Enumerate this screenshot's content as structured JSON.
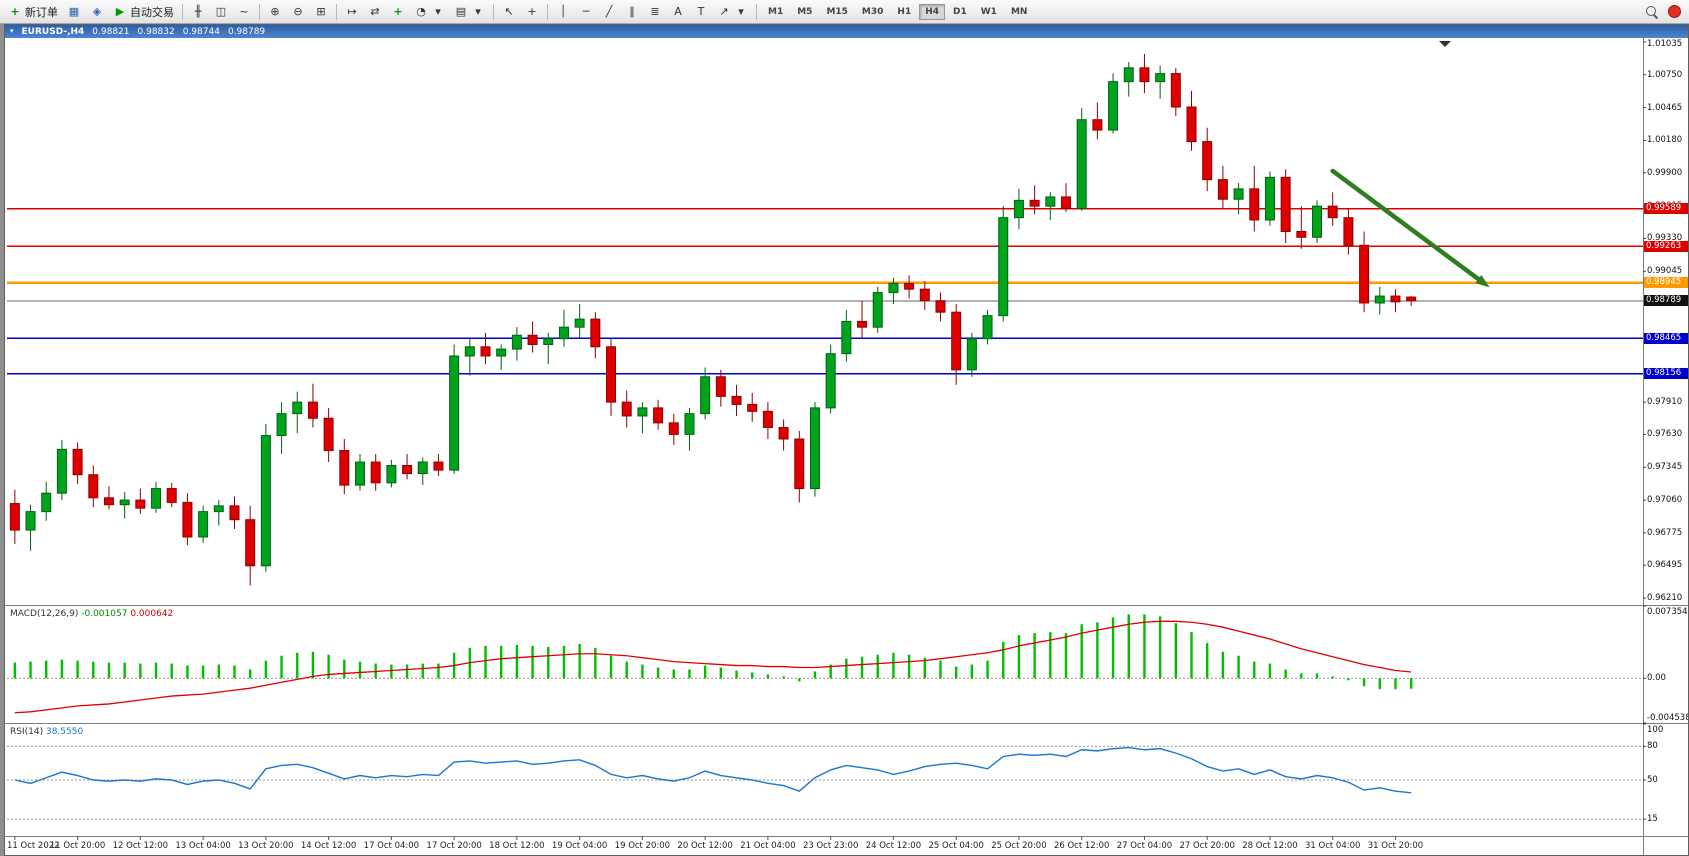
{
  "toolbar": {
    "new_order": "新订单",
    "autotrading": "自动交易",
    "timeframes": [
      "M1",
      "M5",
      "M15",
      "M30",
      "H1",
      "H4",
      "D1",
      "W1",
      "MN"
    ],
    "active_timeframe": "H4",
    "icons": {
      "new_order": "+",
      "charts": "▦",
      "editor": "◈",
      "autotrading": "▶",
      "bars": "╫",
      "candles": "◫",
      "linechart": "~",
      "zoom_in": "⊕",
      "zoom_out": "⊖",
      "tile": "⊞",
      "autoscroll": "↦",
      "shift": "⇄",
      "indicators": "+",
      "periods": "◔",
      "template": "▤",
      "dropdown": "▾",
      "cursor": "↖",
      "crosshair": "+",
      "vline": "│",
      "hline": "─",
      "trendline": "╱",
      "channel": "∥",
      "fibo": "≣",
      "text": "A",
      "label": "T",
      "arrows": "↗",
      "window_menu": "▾"
    }
  },
  "chart_header": {
    "symbol_period": "EURUSD-,H4",
    "open": "0.98821",
    "high": "0.98832",
    "low": "0.98744",
    "close": "0.98789"
  },
  "price_axis": {
    "ticks": [
      {
        "label": "1.01035",
        "value": 1.01035
      },
      {
        "label": "1.00750",
        "value": 1.0075
      },
      {
        "label": "1.00465",
        "value": 1.00465
      },
      {
        "label": "1.00180",
        "value": 1.0018
      },
      {
        "label": "0.99900",
        "value": 0.999
      },
      {
        "label": "0.99615",
        "value": 0.99615
      },
      {
        "label": "0.99330",
        "value": 0.9933
      },
      {
        "label": "0.99045",
        "value": 0.99045
      },
      {
        "label": "0.97910",
        "value": 0.9791
      },
      {
        "label": "0.97630",
        "value": 0.9763
      },
      {
        "label": "0.97345",
        "value": 0.97345
      },
      {
        "label": "0.97060",
        "value": 0.9706
      },
      {
        "label": "0.96775",
        "value": 0.96775
      },
      {
        "label": "0.96495",
        "value": 0.96495
      },
      {
        "label": "0.96210",
        "value": 0.9621
      }
    ],
    "line_labels": [
      {
        "label": "0.99589",
        "value": 0.99589,
        "bg": "#dd0000"
      },
      {
        "label": "0.99263",
        "value": 0.99263,
        "bg": "#dd0000"
      },
      {
        "label": "0.98945",
        "value": 0.98945,
        "bg": "#ff9900"
      },
      {
        "label": "0.98789",
        "value": 0.98789,
        "bg": "#111111"
      },
      {
        "label": "0.98465",
        "value": 0.98465,
        "bg": "#0000cc"
      },
      {
        "label": "0.98156",
        "value": 0.98156,
        "bg": "#0000cc"
      }
    ]
  },
  "time_axis": {
    "labels": [
      "11 Oct 2022",
      "11 Oct 20:00",
      "12 Oct 12:00",
      "13 Oct 04:00",
      "13 Oct 20:00",
      "14 Oct 12:00",
      "17 Oct 04:00",
      "17 Oct 20:00",
      "18 Oct 12:00",
      "19 Oct 04:00",
      "19 Oct 20:00",
      "20 Oct 12:00",
      "21 Oct 04:00",
      "23 Oct 23:00",
      "24 Oct 12:00",
      "25 Oct 04:00",
      "25 Oct 20:00",
      "26 Oct 12:00",
      "27 Oct 04:00",
      "27 Oct 20:00",
      "28 Oct 12:00",
      "31 Oct 04:00",
      "31 Oct 20:00"
    ]
  },
  "macd_panel": {
    "title": "MACD(12,26,9)",
    "value1": "-0.001057",
    "value2": "0.000642",
    "axis_ticks": [
      {
        "label": "0.007354",
        "value": 0.007354
      },
      {
        "label": "0.00",
        "value": 0
      },
      {
        "label": "-0.004538",
        "value": -0.004538
      }
    ]
  },
  "rsi_panel": {
    "title": "RSI(14)",
    "value": "38.5550",
    "axis_ticks": [
      {
        "label": "100",
        "value": 100
      },
      {
        "label": "80",
        "value": 80
      },
      {
        "label": "50",
        "value": 50
      },
      {
        "label": "15",
        "value": 15
      }
    ]
  },
  "chart_data": {
    "type": "candlestick",
    "symbol": "EURUSD-",
    "timeframe": "H4",
    "price_range": [
      0.9615,
      1.0106
    ],
    "colors": {
      "up": "#00a41c",
      "up_edge": "#00610f",
      "down": "#de0000",
      "down_edge": "#8f0000",
      "bid": "#666666",
      "macd_hist": "#00be00",
      "macd_signal": "#e00000",
      "rsi": "#1777d1",
      "arrow": "#2e7d1f"
    },
    "candles_ohlc": [
      [
        0.9703,
        0.9715,
        0.9668,
        0.968
      ],
      [
        0.968,
        0.9702,
        0.9662,
        0.9696
      ],
      [
        0.9696,
        0.9722,
        0.9688,
        0.9712
      ],
      [
        0.9712,
        0.9758,
        0.9706,
        0.975
      ],
      [
        0.975,
        0.9756,
        0.972,
        0.9728
      ],
      [
        0.9728,
        0.9736,
        0.97,
        0.9708
      ],
      [
        0.9708,
        0.9718,
        0.9698,
        0.9702
      ],
      [
        0.9702,
        0.9713,
        0.969,
        0.9706
      ],
      [
        0.9706,
        0.9716,
        0.9694,
        0.9699
      ],
      [
        0.9699,
        0.9722,
        0.9695,
        0.9716
      ],
      [
        0.9716,
        0.9721,
        0.97,
        0.9704
      ],
      [
        0.9704,
        0.9712,
        0.9667,
        0.9674
      ],
      [
        0.9674,
        0.9701,
        0.9669,
        0.9696
      ],
      [
        0.9696,
        0.9706,
        0.9684,
        0.9701
      ],
      [
        0.9701,
        0.9709,
        0.9681,
        0.9689
      ],
      [
        0.9689,
        0.9701,
        0.9632,
        0.9649
      ],
      [
        0.9649,
        0.9772,
        0.9644,
        0.9762
      ],
      [
        0.9762,
        0.9791,
        0.9746,
        0.9781
      ],
      [
        0.9781,
        0.98,
        0.9764,
        0.9791
      ],
      [
        0.9791,
        0.9807,
        0.9769,
        0.9777
      ],
      [
        0.9777,
        0.9786,
        0.9739,
        0.9749
      ],
      [
        0.9749,
        0.9759,
        0.9711,
        0.9719
      ],
      [
        0.9719,
        0.9746,
        0.9714,
        0.9739
      ],
      [
        0.9739,
        0.9746,
        0.9714,
        0.9721
      ],
      [
        0.9721,
        0.9741,
        0.9717,
        0.9736
      ],
      [
        0.9736,
        0.9746,
        0.9724,
        0.9729
      ],
      [
        0.9729,
        0.9743,
        0.9719,
        0.9739
      ],
      [
        0.9739,
        0.9746,
        0.9727,
        0.9732
      ],
      [
        0.9732,
        0.9841,
        0.9729,
        0.9831
      ],
      [
        0.9831,
        0.9846,
        0.9814,
        0.9839
      ],
      [
        0.9839,
        0.9851,
        0.9824,
        0.9831
      ],
      [
        0.9831,
        0.9841,
        0.9819,
        0.9837
      ],
      [
        0.9837,
        0.9856,
        0.9827,
        0.9849
      ],
      [
        0.9849,
        0.9861,
        0.9834,
        0.9841
      ],
      [
        0.9841,
        0.9851,
        0.9824,
        0.9846
      ],
      [
        0.9846,
        0.9871,
        0.9839,
        0.9856
      ],
      [
        0.9856,
        0.9876,
        0.9847,
        0.9863
      ],
      [
        0.9863,
        0.9869,
        0.9829,
        0.9839
      ],
      [
        0.9839,
        0.9846,
        0.9779,
        0.9791
      ],
      [
        0.9791,
        0.9801,
        0.9769,
        0.9779
      ],
      [
        0.9779,
        0.9791,
        0.9764,
        0.9786
      ],
      [
        0.9786,
        0.9793,
        0.9767,
        0.9773
      ],
      [
        0.9773,
        0.9781,
        0.9754,
        0.9763
      ],
      [
        0.9763,
        0.9786,
        0.9749,
        0.9781
      ],
      [
        0.9781,
        0.9821,
        0.9776,
        0.9813
      ],
      [
        0.9813,
        0.9819,
        0.9787,
        0.9796
      ],
      [
        0.9796,
        0.9806,
        0.9779,
        0.9789
      ],
      [
        0.9789,
        0.9799,
        0.9774,
        0.9783
      ],
      [
        0.9783,
        0.9791,
        0.9759,
        0.9769
      ],
      [
        0.9769,
        0.9776,
        0.9749,
        0.9759
      ],
      [
        0.9759,
        0.9766,
        0.9704,
        0.9716
      ],
      [
        0.9716,
        0.9791,
        0.9709,
        0.9786
      ],
      [
        0.9786,
        0.9841,
        0.9781,
        0.9833
      ],
      [
        0.9833,
        0.9871,
        0.9826,
        0.9861
      ],
      [
        0.9861,
        0.9879,
        0.9846,
        0.9856
      ],
      [
        0.9856,
        0.9891,
        0.9851,
        0.9886
      ],
      [
        0.9886,
        0.9899,
        0.9876,
        0.9894
      ],
      [
        0.9894,
        0.9901,
        0.9881,
        0.9889
      ],
      [
        0.9889,
        0.9896,
        0.9871,
        0.9879
      ],
      [
        0.9879,
        0.9886,
        0.9861,
        0.9869
      ],
      [
        0.9869,
        0.9876,
        0.9806,
        0.9819
      ],
      [
        0.9819,
        0.9851,
        0.9813,
        0.9846
      ],
      [
        0.9846,
        0.9871,
        0.9841,
        0.9866
      ],
      [
        0.9866,
        0.9961,
        0.9861,
        0.9951
      ],
      [
        0.9951,
        0.9976,
        0.9941,
        0.9966
      ],
      [
        0.9966,
        0.9979,
        0.9954,
        0.9961
      ],
      [
        0.9961,
        0.9973,
        0.9949,
        0.9969
      ],
      [
        0.9969,
        0.9981,
        0.9956,
        0.9959
      ],
      [
        0.9959,
        1.0046,
        0.9957,
        1.0036
      ],
      [
        1.0036,
        1.0051,
        1.0019,
        1.0027
      ],
      [
        1.0027,
        1.0076,
        1.0024,
        1.0069
      ],
      [
        1.0069,
        1.0086,
        1.0056,
        1.0081
      ],
      [
        1.0081,
        1.0093,
        1.0059,
        1.0069
      ],
      [
        1.0069,
        1.0083,
        1.0054,
        1.0076
      ],
      [
        1.0076,
        1.0081,
        1.0039,
        1.0047
      ],
      [
        1.0047,
        1.0061,
        1.0009,
        1.0017
      ],
      [
        1.0017,
        1.0029,
        0.9974,
        0.9984
      ],
      [
        0.9984,
        0.9996,
        0.9959,
        0.9967
      ],
      [
        0.9967,
        0.9981,
        0.9954,
        0.9976
      ],
      [
        0.9976,
        0.9996,
        0.9939,
        0.9949
      ],
      [
        0.9949,
        0.9991,
        0.9944,
        0.9986
      ],
      [
        0.9986,
        0.9993,
        0.9929,
        0.9939
      ],
      [
        0.9939,
        0.9961,
        0.9924,
        0.9934
      ],
      [
        0.9934,
        0.9966,
        0.9929,
        0.9961
      ],
      [
        0.9961,
        0.9973,
        0.9944,
        0.9951
      ],
      [
        0.9951,
        0.9959,
        0.9919,
        0.9927
      ],
      [
        0.9927,
        0.9939,
        0.9869,
        0.9877
      ],
      [
        0.9877,
        0.9891,
        0.9867,
        0.9883
      ],
      [
        0.9883,
        0.9889,
        0.9869,
        0.9878
      ],
      [
        0.98821,
        0.98832,
        0.98744,
        0.98789
      ]
    ],
    "horizontal_lines": [
      {
        "price": 0.99589,
        "color": "#dd0000",
        "width": 1.4
      },
      {
        "price": 0.99263,
        "color": "#dd0000",
        "width": 1.4
      },
      {
        "price": 0.98945,
        "color": "#ff9900",
        "width": 2.2
      },
      {
        "price": 0.98465,
        "color": "#0000cc",
        "width": 1.6
      },
      {
        "price": 0.98156,
        "color": "#0000cc",
        "width": 1.6
      }
    ],
    "bid_line": {
      "price": 0.98789
    },
    "trend_arrow": {
      "from_bar": 84.5,
      "from_price": 0.99915,
      "to_bar": 94.5,
      "to_price": 0.98905
    },
    "macd": {
      "range": [
        -0.004538,
        0.007354
      ],
      "histogram": [
        0.0016,
        0.0017,
        0.0018,
        0.0019,
        0.0018,
        0.0017,
        0.0016,
        0.0016,
        0.0015,
        0.0016,
        0.0015,
        0.0013,
        0.0013,
        0.0014,
        0.0013,
        0.0009,
        0.0018,
        0.0023,
        0.0026,
        0.0027,
        0.0024,
        0.0019,
        0.0017,
        0.0015,
        0.0014,
        0.0014,
        0.0015,
        0.0015,
        0.0026,
        0.0031,
        0.0033,
        0.0033,
        0.0034,
        0.0033,
        0.0032,
        0.0033,
        0.0035,
        0.0031,
        0.0023,
        0.0017,
        0.0014,
        0.0011,
        0.0009,
        0.0009,
        0.0013,
        0.0011,
        0.0008,
        0.0006,
        0.0004,
        0.0002,
        -0.0003,
        0.0007,
        0.0014,
        0.002,
        0.0022,
        0.0024,
        0.0026,
        0.0024,
        0.0021,
        0.0018,
        0.0012,
        0.0014,
        0.0018,
        0.0037,
        0.0044,
        0.0046,
        0.0047,
        0.0046,
        0.0055,
        0.0057,
        0.0062,
        0.0065,
        0.0065,
        0.0063,
        0.0056,
        0.0047,
        0.0036,
        0.0027,
        0.0023,
        0.0017,
        0.0015,
        0.0009,
        0.0005,
        0.0005,
        0.0002,
        -0.0002,
        -0.0008,
        -0.0011,
        -0.0011,
        -0.001057
      ],
      "signal": [
        -0.0035,
        -0.0034,
        -0.0032,
        -0.003,
        -0.0028,
        -0.0027,
        -0.0026,
        -0.0024,
        -0.0022,
        -0.002,
        -0.0018,
        -0.0017,
        -0.0016,
        -0.0014,
        -0.0012,
        -0.001,
        -0.0007,
        -0.0004,
        -0.0001,
        0.0002,
        0.0004,
        0.0005,
        0.0006,
        0.0007,
        0.0008,
        0.0009,
        0.001,
        0.0011,
        0.0013,
        0.0016,
        0.0018,
        0.002,
        0.0021,
        0.0022,
        0.0023,
        0.0024,
        0.0025,
        0.0025,
        0.0024,
        0.0023,
        0.0021,
        0.0019,
        0.0017,
        0.0016,
        0.0015,
        0.0014,
        0.0013,
        0.0013,
        0.0012,
        0.0012,
        0.0011,
        0.0011,
        0.0012,
        0.0013,
        0.0014,
        0.0015,
        0.0016,
        0.0017,
        0.0018,
        0.002,
        0.0022,
        0.0024,
        0.0026,
        0.0029,
        0.0033,
        0.0036,
        0.0039,
        0.0042,
        0.0046,
        0.0049,
        0.0052,
        0.0055,
        0.0057,
        0.0058,
        0.0058,
        0.0057,
        0.0055,
        0.0052,
        0.0048,
        0.0044,
        0.004,
        0.0035,
        0.003,
        0.0026,
        0.0022,
        0.0018,
        0.0014,
        0.0011,
        0.0008,
        0.000642
      ]
    },
    "rsi": {
      "range": [
        0,
        100
      ],
      "levels": [
        80,
        50,
        15
      ],
      "values": [
        50,
        47,
        52,
        57,
        54,
        50,
        49,
        50,
        49,
        51,
        50,
        46,
        49,
        50,
        47,
        42,
        60,
        63,
        64,
        61,
        56,
        51,
        54,
        52,
        54,
        53,
        55,
        54,
        66,
        67,
        65,
        66,
        67,
        64,
        65,
        67,
        68,
        63,
        55,
        52,
        54,
        51,
        49,
        52,
        58,
        54,
        52,
        50,
        47,
        45,
        40,
        52,
        59,
        63,
        61,
        59,
        55,
        58,
        62,
        64,
        65,
        63,
        60,
        71,
        73,
        72,
        73,
        71,
        77,
        76,
        78,
        79,
        77,
        78,
        74,
        69,
        62,
        58,
        60,
        55,
        59,
        53,
        51,
        54,
        52,
        48,
        41,
        43,
        40,
        38.555
      ]
    }
  }
}
